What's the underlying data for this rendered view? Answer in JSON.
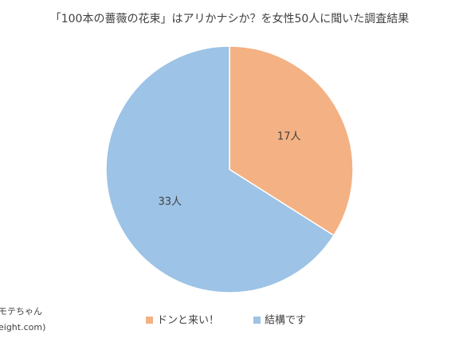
{
  "chart_data": {
    "type": "pie",
    "title": "「100本の薔薇の花束」はアリかナシか？を女性50人に聞いた調査結果",
    "categories": [
      "ドンと来い！",
      "結構です"
    ],
    "values": [
      17,
      33
    ],
    "value_labels": [
      "17人",
      "33人"
    ],
    "colors": [
      "#f4b183",
      "#9dc3e6"
    ],
    "legend": "bottom",
    "source": [
      "モテちゃん",
      "eight.com)"
    ]
  }
}
